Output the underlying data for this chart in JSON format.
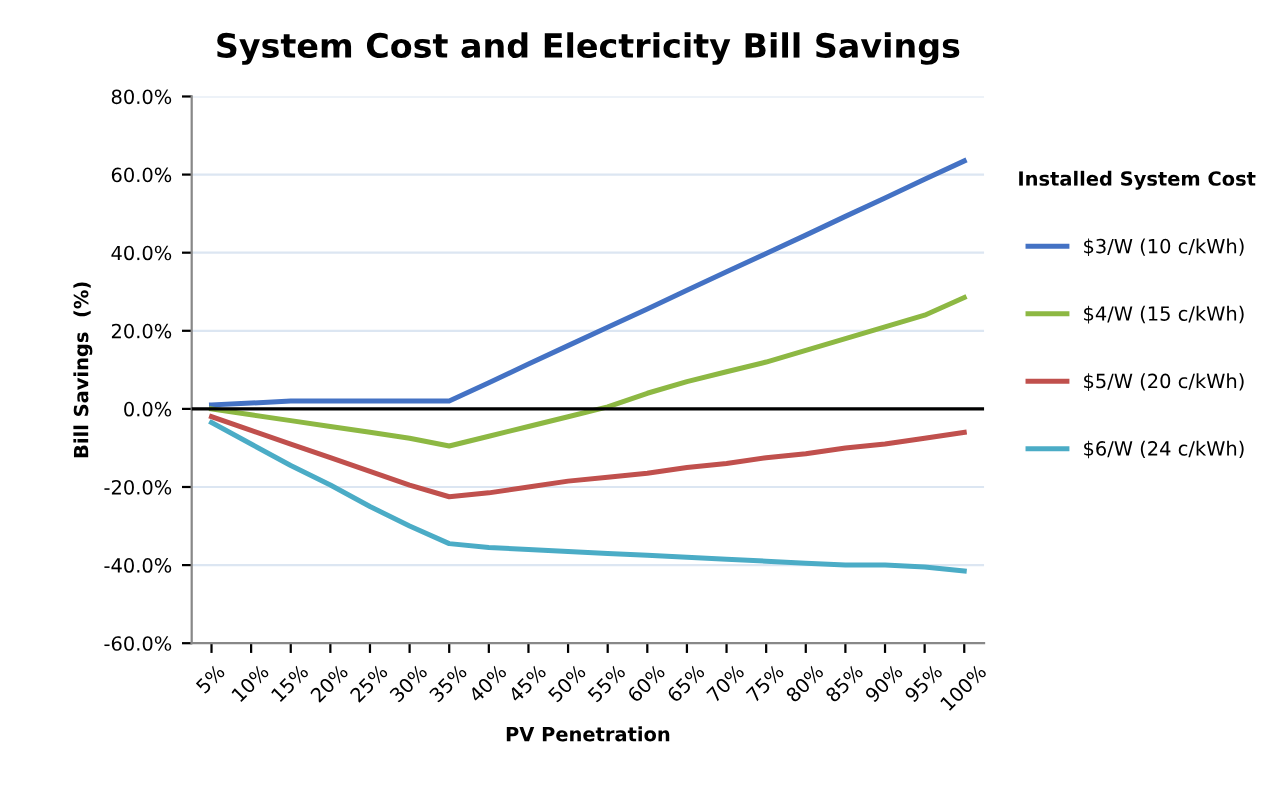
{
  "chart_data": {
    "type": "line",
    "title": "System Cost and Electricity Bill Savings",
    "xlabel": "PV Penetration",
    "ylabel": "Bill Savings  (%)",
    "legend_title": "Installed System Cost",
    "legend": "right",
    "grid": "y",
    "categories": [
      "5%",
      "10%",
      "15%",
      "20%",
      "25%",
      "30%",
      "35%",
      "40%",
      "45%",
      "50%",
      "55%",
      "60%",
      "65%",
      "70%",
      "75%",
      "80%",
      "85%",
      "90%",
      "95%",
      "100%"
    ],
    "ylim": [
      -60,
      80
    ],
    "yticks": [
      {
        "value": -60,
        "label": "-60.0%"
      },
      {
        "value": -40,
        "label": "-40.0%"
      },
      {
        "value": -20,
        "label": "-20.0%"
      },
      {
        "value": 0,
        "label": "0.0%"
      },
      {
        "value": 20,
        "label": "20.0%"
      },
      {
        "value": 40,
        "label": "40.0%"
      },
      {
        "value": 60,
        "label": "60.0%"
      },
      {
        "value": 80,
        "label": "80.0%"
      }
    ],
    "ref_lines": [
      {
        "axis": "y",
        "value": 0,
        "color": "#000000"
      }
    ],
    "series": [
      {
        "name": "$3/W (10 c/kWh)",
        "color": "#4472c4",
        "values": [
          1,
          1.5,
          2,
          2,
          2,
          2,
          2,
          6.7,
          11.5,
          16.2,
          20.9,
          25.6,
          30.4,
          35.1,
          39.8,
          44.5,
          49.3,
          54,
          58.8,
          63.5
        ]
      },
      {
        "name": "$4/W (15 c/kWh)",
        "color": "#8db843",
        "values": [
          0,
          -1.5,
          -3,
          -4.5,
          -6,
          -7.5,
          -9.5,
          -7,
          -4.5,
          -2,
          0.5,
          4,
          7,
          9.5,
          12,
          15,
          18,
          21,
          24,
          28.5
        ]
      },
      {
        "name": "$5/W (20 c/kWh)",
        "color": "#c0504d",
        "values": [
          -2,
          -5.5,
          -9,
          -12.5,
          -16,
          -19.5,
          -22.5,
          -21.5,
          -20,
          -18.5,
          -17.5,
          -16.5,
          -15,
          -14,
          -12.5,
          -11.5,
          -10,
          -9,
          -7.5,
          -6
        ]
      },
      {
        "name": "$6/W (24 c/kWh)",
        "color": "#4bacc6",
        "values": [
          -3.5,
          -9,
          -14.5,
          -19.5,
          -25,
          -30,
          -34.5,
          -35.5,
          -36,
          -36.5,
          -37,
          -37.5,
          -38,
          -38.5,
          -39,
          -39.5,
          -40,
          -40,
          -40.5,
          -41.5
        ]
      }
    ]
  }
}
